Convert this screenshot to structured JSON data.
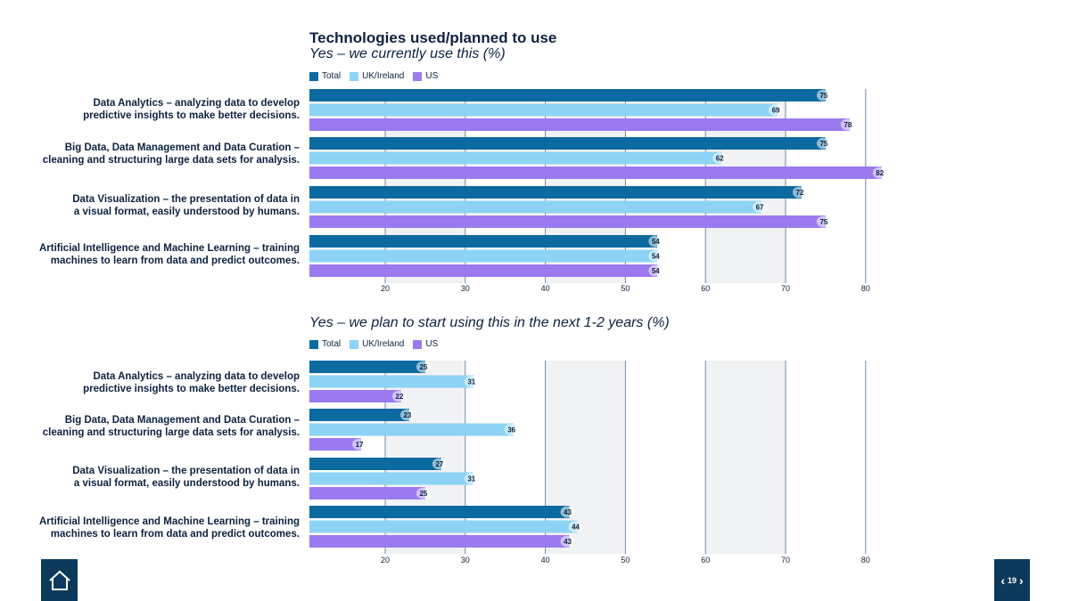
{
  "title": "Technologies used/planned to use",
  "legend": [
    {
      "name": "Total",
      "color": "#0d6aa0"
    },
    {
      "name": "UK/Ireland",
      "color": "#8dd3f5"
    },
    {
      "name": "US",
      "color": "#9b7af0"
    }
  ],
  "categories": [
    [
      "Data Analytics – analyzing data to develop",
      "predictive insights to make better decisions."
    ],
    [
      "Big Data, Data Management and Data Curation –",
      "cleaning and structuring large data sets for analysis."
    ],
    [
      "Data Visualization – the presentation of data in",
      "a visual format, easily understood by humans."
    ],
    [
      "Artificial Intelligence and Machine Learning – training",
      "machines to learn from data and predict outcomes."
    ]
  ],
  "chart_data": [
    {
      "type": "bar",
      "orientation": "horizontal",
      "title": "Yes – we currently use this (%)",
      "categories": [
        "Data Analytics – analyzing data to develop predictive insights to make better decisions.",
        "Big Data, Data Management and Data Curation – cleaning and structuring large data sets for analysis.",
        "Data Visualization – the presentation of data in a visual format, easily understood by humans.",
        "Artificial Intelligence and Machine Learning – training machines to learn from data and predict outcomes."
      ],
      "series": [
        {
          "name": "Total",
          "values": [
            75,
            75,
            72,
            54
          ]
        },
        {
          "name": "UK/Ireland",
          "values": [
            69,
            62,
            67,
            54
          ]
        },
        {
          "name": "US",
          "values": [
            78,
            82,
            75,
            54
          ]
        }
      ],
      "xticks": [
        20,
        30,
        40,
        50,
        60,
        70,
        80
      ],
      "xlim": [
        11,
        82
      ]
    },
    {
      "type": "bar",
      "orientation": "horizontal",
      "title": "Yes – we plan to start using this in the next 1-2 years (%)",
      "categories": [
        "Data Analytics – analyzing data to develop predictive insights to make better decisions.",
        "Big Data, Data Management and Data Curation – cleaning and structuring large data sets for analysis.",
        "Data Visualization – the presentation of data in a visual format, easily understood by humans.",
        "Artificial Intelligence and Machine Learning – training machines to learn from data and predict outcomes."
      ],
      "series": [
        {
          "name": "Total",
          "values": [
            25,
            23,
            27,
            43
          ]
        },
        {
          "name": "UK/Ireland",
          "values": [
            31,
            36,
            31,
            44
          ]
        },
        {
          "name": "US",
          "values": [
            22,
            17,
            25,
            43
          ]
        }
      ],
      "xticks": [
        20,
        30,
        40,
        50,
        60,
        70,
        80
      ],
      "xlim": [
        11,
        82
      ]
    }
  ],
  "nav": {
    "page_number": "19",
    "home_icon": "home-icon",
    "prev_icon": "chevron-left-icon",
    "next_icon": "chevron-right-icon"
  }
}
